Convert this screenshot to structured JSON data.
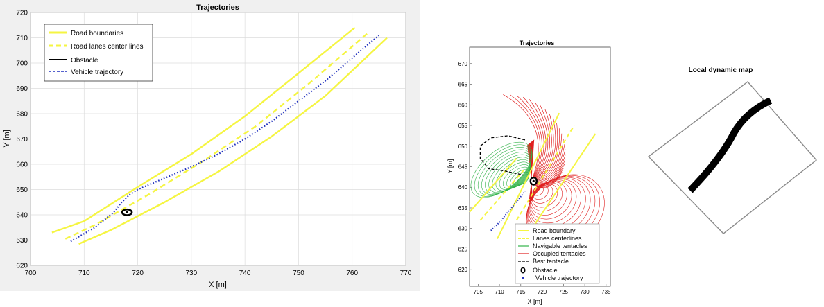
{
  "chart_data": [
    {
      "type": "line",
      "title": "Trajectories",
      "xlabel": "X [m]",
      "ylabel": "Y [m]",
      "xlim": [
        700,
        770
      ],
      "ylim": [
        620,
        720
      ],
      "xticks": [
        700,
        710,
        720,
        730,
        740,
        750,
        760,
        770
      ],
      "yticks": [
        620,
        630,
        640,
        650,
        660,
        670,
        680,
        690,
        700,
        710,
        720
      ],
      "grid": true,
      "legend_position": "top-left",
      "series": [
        {
          "name": "Road boundaries",
          "color": "#f5f542",
          "style": "solid",
          "x": [
            704,
            710,
            720,
            730,
            740,
            750,
            760.5
          ],
          "y": [
            633,
            637.5,
            651,
            664,
            679,
            696,
            714
          ]
        },
        {
          "color": "#f5f542",
          "style": "solid",
          "x": [
            709,
            715,
            725,
            735,
            745,
            755,
            766.5
          ],
          "y": [
            628.5,
            634,
            645,
            657,
            671,
            687,
            710
          ]
        },
        {
          "name": "Road lanes center lines",
          "color": "#f5f542",
          "style": "dashed",
          "x": [
            706.5,
            712,
            722,
            732,
            742,
            752,
            763
          ],
          "y": [
            630.5,
            636,
            648,
            661,
            675,
            692,
            712
          ]
        },
        {
          "name": "Vehicle trajectory",
          "color": "#1f2fbd",
          "style": "dotted",
          "x": [
            707.5,
            712,
            715.5,
            717,
            718.5,
            720,
            725,
            730,
            735,
            740,
            745,
            750,
            755,
            760,
            765
          ],
          "y": [
            629.5,
            635,
            641,
            645,
            648,
            650,
            654.5,
            659,
            664,
            670,
            677,
            685,
            693,
            702,
            711
          ]
        }
      ],
      "obstacle": {
        "name": "Obstacle",
        "x": 718,
        "y": 641
      }
    },
    {
      "type": "line",
      "title": "Trajectories",
      "xlabel": "X [m]",
      "ylabel": "Y [m]",
      "xlim": [
        703,
        736
      ],
      "ylim": [
        616,
        674
      ],
      "xticks": [
        705,
        710,
        715,
        720,
        725,
        730,
        735
      ],
      "yticks": [
        620,
        625,
        630,
        635,
        640,
        645,
        650,
        655,
        660,
        665,
        670
      ],
      "grid": false,
      "legend_position": "bottom-right",
      "legend": [
        "Road boundary",
        "Lanes centerlines",
        "Navigable tentacles",
        "Occupied tentacles",
        "Best tentacle",
        "Obstacle",
        "Vehicle trajectory"
      ],
      "series": [
        {
          "name": "Road boundary",
          "color": "#f5f542",
          "style": "solid",
          "x": [
            703,
            714
          ],
          "y": [
            634,
            647
          ]
        },
        {
          "color": "#f5f542",
          "style": "solid",
          "x": [
            709.5,
            724
          ],
          "y": [
            627.5,
            658
          ]
        },
        {
          "color": "#f5f542",
          "style": "solid",
          "x": [
            716,
            732.5
          ],
          "y": [
            627.5,
            653
          ]
        },
        {
          "name": "Lanes centerlines",
          "color": "#f5f542",
          "style": "dashed",
          "x": [
            705.5,
            716
          ],
          "y": [
            632,
            644.5
          ]
        },
        {
          "color": "#f5f542",
          "style": "dashed",
          "x": [
            714,
            727.5
          ],
          "y": [
            632,
            655
          ]
        },
        {
          "name": "Vehicle trajectory",
          "color": "#1f2fbd",
          "style": "dotted",
          "x": [
            708,
            710,
            712,
            714,
            716
          ],
          "y": [
            629.5,
            631.5,
            634,
            636.5,
            639
          ]
        },
        {
          "name": "Best tentacle",
          "color": "#000000",
          "style": "dashed",
          "x": [
            716,
            712,
            708,
            705.5,
            705.5,
            707.5,
            711,
            715.5
          ],
          "y": [
            651.5,
            652.5,
            652,
            650,
            647,
            644.5,
            644,
            643
          ]
        }
      ],
      "tentacle_origin": {
        "x": 717.5,
        "y": 641.5
      },
      "obstacle": {
        "name": "Obstacle",
        "x": 718,
        "y": 641.5
      }
    },
    {
      "type": "other",
      "title": "Local dynamic map"
    }
  ]
}
